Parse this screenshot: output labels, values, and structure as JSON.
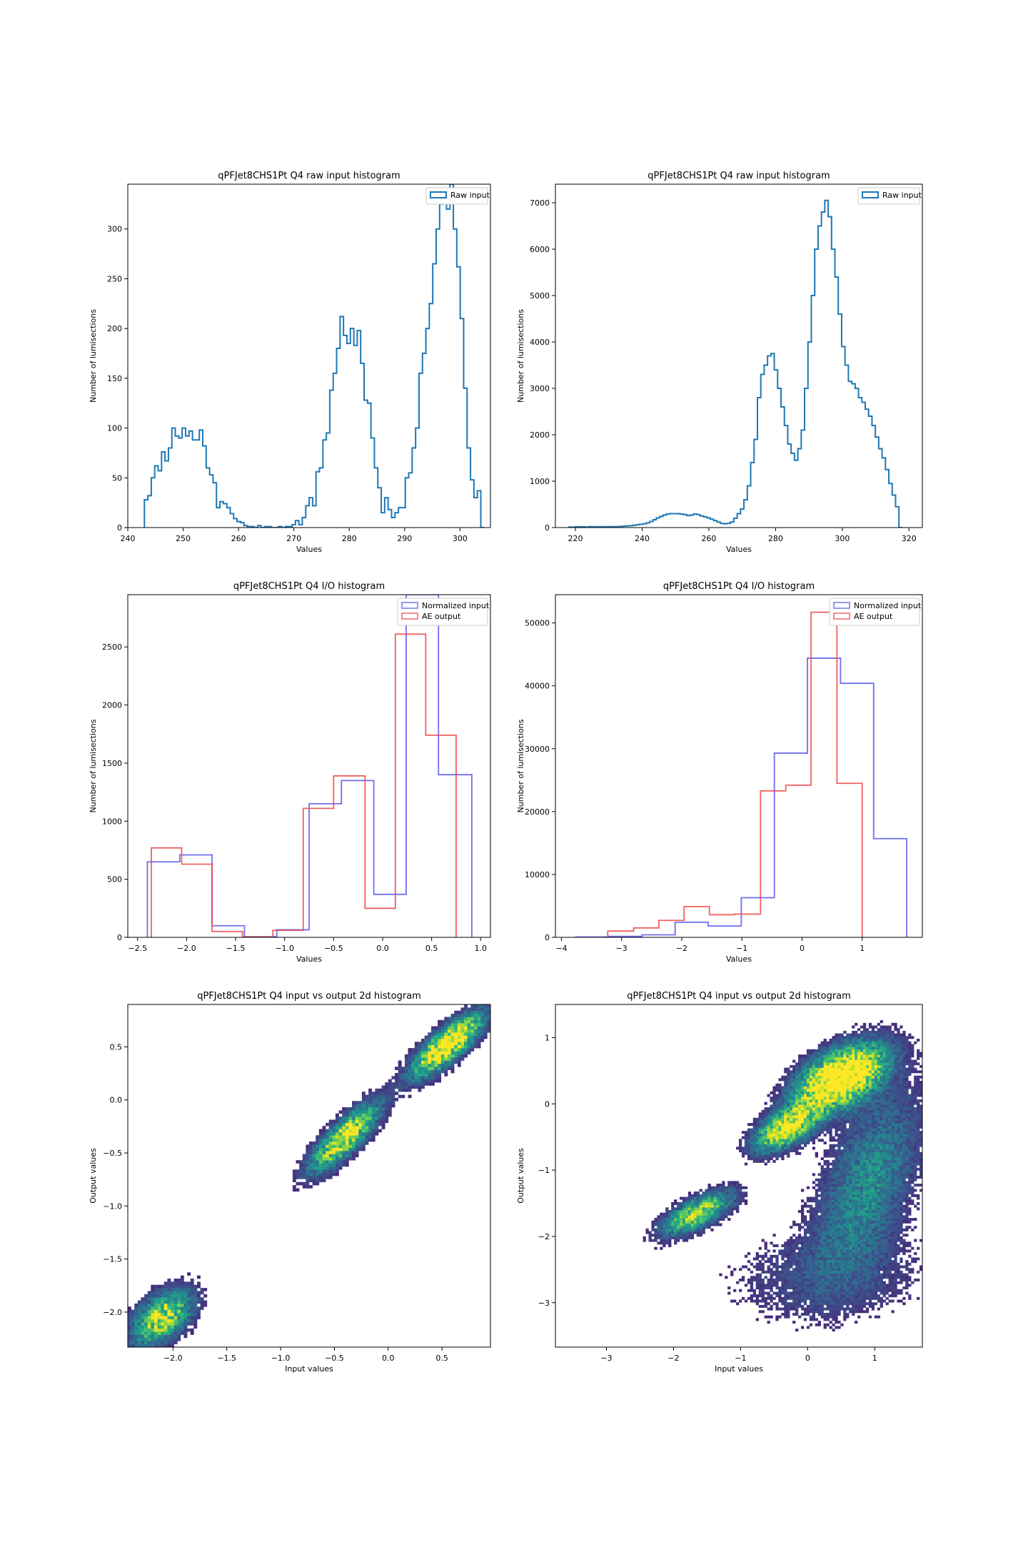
{
  "colors": {
    "raw": "#1f77b4",
    "normalized": "#5555ee",
    "ae": "#ee4444",
    "viridis": [
      "#440154",
      "#482878",
      "#3e4a89",
      "#31688e",
      "#26828e",
      "#1f9e89",
      "#35b779",
      "#6ece58",
      "#b5de2b",
      "#fde725"
    ]
  },
  "chart_data": [
    {
      "type": "histogram-step",
      "title": "qPFJet8CHS1Pt Q4 raw input histogram",
      "xlabel": "Values",
      "ylabel": "Number of lumisections",
      "xlim": [
        240,
        305.5
      ],
      "ylim": [
        0,
        345
      ],
      "xticks": [
        240,
        250,
        260,
        270,
        280,
        290,
        300
      ],
      "yticks": [
        0,
        50,
        100,
        150,
        200,
        250,
        300
      ],
      "legend": {
        "placement": "top-right",
        "entries": [
          "Raw input"
        ]
      },
      "series": [
        {
          "name": "Raw input",
          "bin_start": 243.0,
          "bin_width": 0.62,
          "values": [
            28,
            32,
            50,
            62,
            57,
            76,
            67,
            80,
            100,
            92,
            90,
            100,
            92,
            97,
            88,
            88,
            98,
            82,
            60,
            53,
            45,
            20,
            26,
            24,
            20,
            14,
            9,
            6,
            5,
            2,
            1,
            1,
            0,
            2,
            0,
            1,
            1,
            0,
            0,
            1,
            0,
            1,
            1,
            3,
            7,
            3,
            10,
            22,
            30,
            22,
            56,
            60,
            88,
            95,
            138,
            155,
            180,
            212,
            193,
            185,
            200,
            183,
            198,
            165,
            128,
            125,
            90,
            60,
            40,
            15,
            30,
            18,
            10,
            15,
            20,
            20,
            50,
            55,
            80,
            100,
            155,
            175,
            200,
            225,
            265,
            300,
            325,
            338,
            320,
            345,
            300,
            262,
            210,
            140,
            80,
            48,
            30,
            37,
            0
          ]
        }
      ]
    },
    {
      "type": "histogram-step",
      "title": "qPFJet8CHS1Pt Q4 raw input histogram",
      "xlabel": "Values",
      "ylabel": "Number of lumisections",
      "xlim": [
        214,
        324
      ],
      "ylim": [
        0,
        7400
      ],
      "xticks": [
        220,
        240,
        260,
        280,
        300,
        320
      ],
      "yticks": [
        0,
        1000,
        2000,
        3000,
        4000,
        5000,
        6000,
        7000
      ],
      "legend": {
        "placement": "top-right",
        "entries": [
          "Raw input"
        ]
      },
      "series": [
        {
          "name": "Raw input",
          "bin_start": 218.0,
          "bin_width": 1.01,
          "values": [
            10,
            10,
            15,
            15,
            15,
            10,
            20,
            15,
            20,
            20,
            20,
            15,
            20,
            20,
            20,
            25,
            30,
            35,
            40,
            50,
            60,
            70,
            80,
            100,
            130,
            170,
            210,
            240,
            270,
            290,
            300,
            300,
            300,
            290,
            280,
            260,
            270,
            290,
            280,
            250,
            230,
            210,
            180,
            150,
            120,
            90,
            80,
            90,
            120,
            200,
            300,
            400,
            600,
            900,
            1400,
            1900,
            2800,
            3300,
            3500,
            3700,
            3750,
            3400,
            3000,
            2600,
            2200,
            1800,
            1600,
            1450,
            1700,
            2100,
            3000,
            4000,
            5000,
            6000,
            6500,
            6800,
            7050,
            6700,
            6000,
            5400,
            4600,
            3900,
            3500,
            3150,
            3100,
            3000,
            2800,
            2700,
            2550,
            2400,
            2200,
            1950,
            1700,
            1500,
            1250,
            950,
            700,
            450,
            0
          ]
        }
      ]
    },
    {
      "type": "histogram-step",
      "title": "qPFJet8CHS1Pt Q4 I/O histogram",
      "xlabel": "Values",
      "ylabel": "Number of lumisections",
      "xlim": [
        -2.6,
        1.1
      ],
      "ylim": [
        0,
        2950
      ],
      "xticks": [
        -2.5,
        -2.0,
        -1.5,
        -1.0,
        -0.5,
        0.0,
        0.5,
        1.0
      ],
      "xtick_labels": [
        "−2.5",
        "−2.0",
        "−1.5",
        "−1.0",
        "−0.5",
        "0.0",
        "0.5",
        "1.0"
      ],
      "yticks": [
        0,
        500,
        1000,
        1500,
        2000,
        2500
      ],
      "legend": {
        "placement": "top-right",
        "entries": [
          "Normalized input",
          "AE output"
        ]
      },
      "series": [
        {
          "name": "Normalized input",
          "edges": [
            -2.4,
            -2.07,
            -1.74,
            -1.41,
            -1.08,
            -0.75,
            -0.42,
            -0.09,
            0.24,
            0.57,
            0.91
          ],
          "values": [
            650,
            710,
            100,
            5,
            65,
            1150,
            1350,
            370,
            2950,
            1400
          ]
        },
        {
          "name": "AE output",
          "edges": [
            -2.36,
            -2.05,
            -1.74,
            -1.43,
            -1.12,
            -0.81,
            -0.5,
            -0.18,
            0.13,
            0.44,
            0.75
          ],
          "values": [
            770,
            630,
            50,
            3,
            60,
            1110,
            1390,
            250,
            2610,
            1740
          ]
        }
      ]
    },
    {
      "type": "histogram-step",
      "title": "qPFJet8CHS1Pt Q4 I/O histogram",
      "xlabel": "Values",
      "ylabel": "Number of lumisections",
      "xlim": [
        -4.1,
        2.0
      ],
      "ylim": [
        0,
        54500
      ],
      "xticks": [
        -4,
        -3,
        -2,
        -1,
        0,
        1
      ],
      "xtick_labels": [
        "−4",
        "−3",
        "−2",
        "−1",
        "0",
        "1"
      ],
      "yticks": [
        0,
        10000,
        20000,
        30000,
        40000,
        50000
      ],
      "legend": {
        "placement": "top-right",
        "entries": [
          "Normalized input",
          "AE output"
        ]
      },
      "series": [
        {
          "name": "Normalized input",
          "edges": [
            -3.76,
            -3.21,
            -2.66,
            -2.11,
            -1.56,
            -1.01,
            -0.46,
            0.09,
            0.64,
            1.19,
            1.74
          ],
          "values": [
            50,
            150,
            400,
            2400,
            1800,
            6300,
            29300,
            44400,
            40400,
            15700
          ]
        },
        {
          "name": "AE output",
          "edges": [
            -3.23,
            -2.8,
            -2.38,
            -1.96,
            -1.54,
            -1.12,
            -0.69,
            -0.27,
            0.15,
            0.58,
            1.0
          ],
          "values": [
            1000,
            1500,
            2700,
            4900,
            3600,
            3700,
            23300,
            24200,
            51700,
            24500
          ]
        }
      ]
    },
    {
      "type": "heatmap",
      "title": "qPFJet8CHS1Pt Q4 input vs output 2d histogram",
      "xlabel": "Input values",
      "ylabel": "Output values",
      "xlim": [
        -2.42,
        0.95
      ],
      "ylim": [
        -2.33,
        0.9
      ],
      "xticks": [
        -2.0,
        -1.5,
        -1.0,
        -0.5,
        0.0,
        0.5
      ],
      "xtick_labels": [
        "−2.0",
        "−1.5",
        "−1.0",
        "−0.5",
        "0.0",
        "0.5"
      ],
      "yticks": [
        -2.0,
        -1.5,
        -1.0,
        -0.5,
        0.0,
        0.5
      ],
      "ytick_labels": [
        "−2.0",
        "−1.5",
        "−1.0",
        "−0.5",
        "0.0",
        "0.5"
      ],
      "bins": 110,
      "clusters": [
        {
          "x": -2.1,
          "y": -2.05,
          "sx": 0.17,
          "sy": 0.16,
          "rho": 0.5,
          "weight": 0.9
        },
        {
          "x": -0.4,
          "y": -0.35,
          "sx": 0.2,
          "sy": 0.2,
          "rho": 0.82,
          "weight": 1.0
        },
        {
          "x": 0.55,
          "y": 0.52,
          "sx": 0.2,
          "sy": 0.18,
          "rho": 0.8,
          "weight": 1.3
        }
      ]
    },
    {
      "type": "heatmap",
      "title": "qPFJet8CHS1Pt Q4 input vs output 2d histogram",
      "xlabel": "Input values",
      "ylabel": "Output values",
      "xlim": [
        -3.76,
        1.71
      ],
      "ylim": [
        -3.67,
        1.5
      ],
      "xticks": [
        -3,
        -2,
        -1,
        0,
        1
      ],
      "xtick_labels": [
        "−3",
        "−2",
        "−1",
        "0",
        "1"
      ],
      "yticks": [
        -3,
        -2,
        -1,
        0,
        1
      ],
      "ytick_labels": [
        "−3",
        "−2",
        "−1",
        "0",
        "1"
      ],
      "bins": 130,
      "clusters": [
        {
          "x": 0.5,
          "y": 0.4,
          "sx": 0.4,
          "sy": 0.3,
          "rho": 0.5,
          "weight": 1.6
        },
        {
          "x": -0.3,
          "y": -0.35,
          "sx": 0.3,
          "sy": 0.22,
          "rho": 0.6,
          "weight": 1.1
        },
        {
          "x": -1.65,
          "y": -1.65,
          "sx": 0.32,
          "sy": 0.2,
          "rho": 0.7,
          "weight": 0.85
        },
        {
          "x": 0.9,
          "y": -1.2,
          "sx": 0.5,
          "sy": 0.9,
          "rho": 0.55,
          "weight": 0.35
        },
        {
          "x": 0.3,
          "y": -2.6,
          "sx": 1.0,
          "sy": 0.45,
          "rho": 0.1,
          "weight": 0.12
        }
      ]
    }
  ]
}
